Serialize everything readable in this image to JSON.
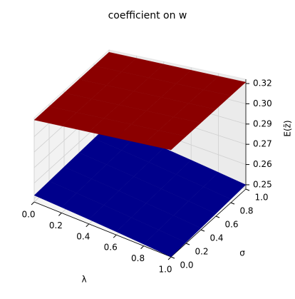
{
  "chart_data": {
    "type": "surface3d",
    "title": "coefficient on w",
    "xlabel": "λ",
    "ylabel": "σ",
    "zlabel": "E(z̄)",
    "xlim": [
      0,
      1
    ],
    "ylim": [
      0,
      1
    ],
    "zlim": [
      0.243,
      0.319
    ],
    "xticks": [
      {
        "value": 0,
        "label": "0.0"
      },
      0.2,
      0.4,
      0.6,
      0.8,
      {
        "value": 1,
        "label": "1.0"
      }
    ],
    "yticks": [
      {
        "value": 0,
        "label": "0.0"
      },
      0.2,
      0.4,
      0.6,
      0.8,
      {
        "value": 1,
        "label": "1.0"
      }
    ],
    "zticks": [
      {
        "value": 0.246,
        "label": "0.25"
      },
      {
        "value": 0.26,
        "label": "0.26"
      },
      {
        "value": 0.274,
        "label": "0.27"
      },
      {
        "value": 0.288,
        "label": "0.29"
      },
      {
        "value": 0.302,
        "label": "0.30"
      },
      {
        "value": 0.316,
        "label": "0.32"
      }
    ],
    "grid": true,
    "x": [
      0,
      0.2,
      0.4,
      0.6,
      0.8,
      1
    ],
    "y": [
      0,
      0.2,
      0.4,
      0.6,
      0.8,
      1
    ],
    "series": [
      {
        "color": "#00008b",
        "z": [
          [
            0.249,
            0.2478,
            0.2466,
            0.2454,
            0.2442,
            0.243
          ],
          [
            0.2496,
            0.2484,
            0.2472,
            0.246,
            0.2448,
            0.2436
          ],
          [
            0.2502,
            0.249,
            0.2478,
            0.2466,
            0.2454,
            0.2442
          ],
          [
            0.2508,
            0.2496,
            0.2484,
            0.2472,
            0.246,
            0.2448
          ],
          [
            0.2514,
            0.2502,
            0.249,
            0.2478,
            0.2466,
            0.2454
          ],
          [
            0.252,
            0.2508,
            0.2496,
            0.2484,
            0.2472,
            0.246
          ]
        ]
      },
      {
        "color": "#8b0000",
        "z": [
          [
            0.317,
            0.317,
            0.317,
            0.317,
            0.317,
            0.317
          ],
          [
            0.317,
            0.317,
            0.317,
            0.317,
            0.317,
            0.317
          ],
          [
            0.317,
            0.317,
            0.317,
            0.317,
            0.317,
            0.317
          ],
          [
            0.317,
            0.317,
            0.317,
            0.317,
            0.317,
            0.317
          ],
          [
            0.317,
            0.317,
            0.317,
            0.317,
            0.317,
            0.317
          ],
          [
            0.317,
            0.317,
            0.317,
            0.317,
            0.317,
            0.317
          ]
        ]
      }
    ]
  }
}
